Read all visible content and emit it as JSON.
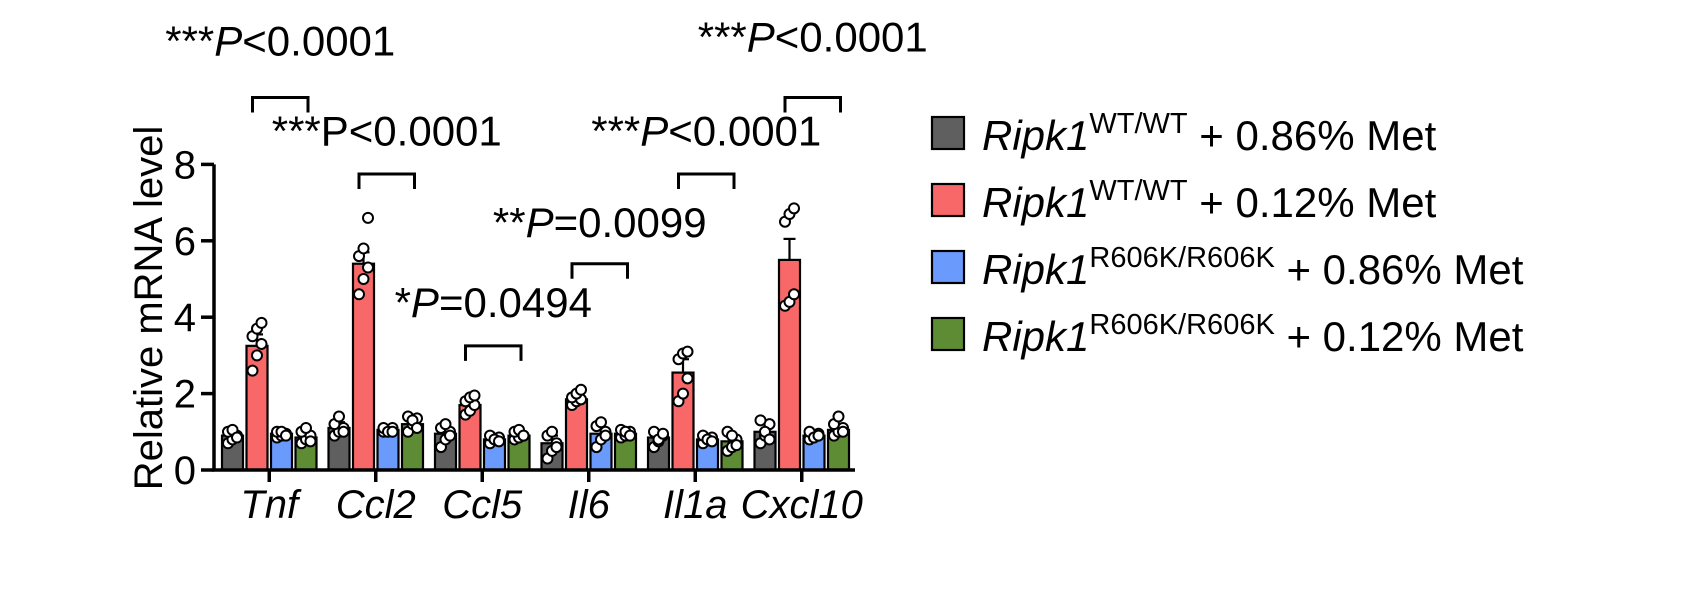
{
  "chart_data": {
    "type": "bar",
    "ylabel": "Relative mRNA level",
    "ylim": [
      0,
      8
    ],
    "yticks": [
      "0",
      "2",
      "4",
      "6",
      "8"
    ],
    "categories": [
      "Tnf",
      "Ccl2",
      "Ccl5",
      "Il6",
      "Il1a",
      "Cxcl10"
    ],
    "legend_position": "right",
    "series": [
      {
        "name_gene": "Ripk1",
        "name_genotype": "WT/WT",
        "name_diet": " + 0.86% Met",
        "color": "#5f5f5f",
        "values": [
          0.9,
          1.1,
          0.95,
          0.7,
          0.85,
          1.0
        ],
        "errors": [
          0.1,
          0.15,
          0.1,
          0.2,
          0.1,
          0.2
        ],
        "points": [
          [
            0.7,
            0.8,
            0.9,
            1.0,
            1.05,
            0.85
          ],
          [
            0.9,
            1.0,
            1.1,
            1.2,
            1.4,
            1.0
          ],
          [
            0.6,
            0.8,
            1.0,
            1.1,
            1.2,
            0.9
          ],
          [
            0.3,
            0.5,
            0.7,
            0.9,
            1.0,
            0.6
          ],
          [
            0.6,
            0.75,
            0.9,
            1.0,
            0.8,
            0.95
          ],
          [
            0.7,
            0.9,
            1.2,
            1.3,
            1.0,
            0.8
          ]
        ]
      },
      {
        "name_gene": "Ripk1",
        "name_genotype": "WT/WT",
        "name_diet": " + 0.12% Met",
        "color": "#f96868",
        "values": [
          3.25,
          5.4,
          1.7,
          1.85,
          2.55,
          5.5
        ],
        "errors": [
          0.3,
          0.3,
          0.1,
          0.15,
          0.35,
          0.55
        ],
        "points": [
          [
            2.6,
            3.0,
            3.3,
            3.5,
            3.7,
            3.85
          ],
          [
            4.6,
            5.0,
            5.3,
            5.6,
            5.8,
            6.6
          ],
          [
            1.45,
            1.55,
            1.7,
            1.8,
            1.9,
            1.95
          ],
          [
            1.7,
            1.8,
            1.85,
            1.9,
            2.0,
            2.1
          ],
          [
            1.8,
            2.0,
            2.4,
            2.9,
            3.05,
            3.1
          ],
          [
            4.3,
            4.4,
            4.6,
            6.5,
            6.7,
            6.85
          ]
        ]
      },
      {
        "name_gene": "Ripk1",
        "name_genotype": "R606K/R606K",
        "name_diet": " + 0.86% Met",
        "color": "#6a9bfc",
        "values": [
          0.95,
          1.05,
          0.8,
          0.95,
          0.8,
          0.9
        ],
        "errors": [
          0.05,
          0.05,
          0.07,
          0.15,
          0.07,
          0.07
        ],
        "points": [
          [
            0.85,
            0.9,
            0.95,
            1.0,
            1.0,
            0.9
          ],
          [
            1.0,
            1.05,
            1.1,
            1.1,
            1.0,
            1.0
          ],
          [
            0.7,
            0.8,
            0.85,
            0.9,
            0.8,
            0.75
          ],
          [
            0.6,
            0.8,
            1.0,
            1.15,
            1.25,
            0.9
          ],
          [
            0.7,
            0.8,
            0.85,
            0.9,
            0.8,
            0.75
          ],
          [
            0.8,
            0.9,
            0.95,
            1.0,
            0.85,
            0.9
          ]
        ]
      },
      {
        "name_gene": "Ripk1",
        "name_genotype": "R606K/R606K",
        "name_diet": " + 0.12% Met",
        "color": "#5e8c34",
        "values": [
          0.85,
          1.2,
          0.9,
          0.95,
          0.75,
          1.05
        ],
        "errors": [
          0.1,
          0.12,
          0.07,
          0.06,
          0.12,
          0.12
        ],
        "points": [
          [
            0.7,
            0.8,
            0.9,
            1.0,
            1.1,
            0.75
          ],
          [
            1.0,
            1.2,
            1.35,
            1.4,
            1.3,
            1.1
          ],
          [
            0.8,
            0.85,
            0.9,
            1.0,
            1.05,
            0.9
          ],
          [
            0.85,
            0.9,
            1.0,
            1.05,
            1.0,
            0.9
          ],
          [
            0.5,
            0.6,
            0.8,
            1.0,
            0.9,
            0.65
          ],
          [
            0.9,
            1.0,
            1.1,
            1.2,
            1.4,
            1.0
          ]
        ]
      }
    ],
    "annotations": [
      {
        "stars": "***",
        "letter": "P",
        "rest": "<0.0001",
        "italic": true,
        "category": "Tnf",
        "y": 9.75,
        "label_y": 10.85
      },
      {
        "stars": "***",
        "letter": "P",
        "rest": "<0.0001",
        "italic": false,
        "category": "Ccl2",
        "y": 7.75,
        "label_y": 8.5
      },
      {
        "stars": "*",
        "letter": "P",
        "rest": "=0.0494",
        "italic": true,
        "category": "Ccl5",
        "y": 3.25,
        "label_y": 4.0
      },
      {
        "stars": "**",
        "letter": "P",
        "rest": "=0.0099",
        "italic": true,
        "category": "Il6",
        "y": 5.4,
        "label_y": 6.1
      },
      {
        "stars": "***",
        "letter": "P",
        "rest": "<0.0001",
        "italic": true,
        "category": "Il1a",
        "y": 7.75,
        "label_y": 8.5
      },
      {
        "stars": "***",
        "letter": "P",
        "rest": "<0.0001",
        "italic": true,
        "category": "Cxcl10",
        "y": 9.75,
        "label_y": 10.95
      }
    ]
  }
}
